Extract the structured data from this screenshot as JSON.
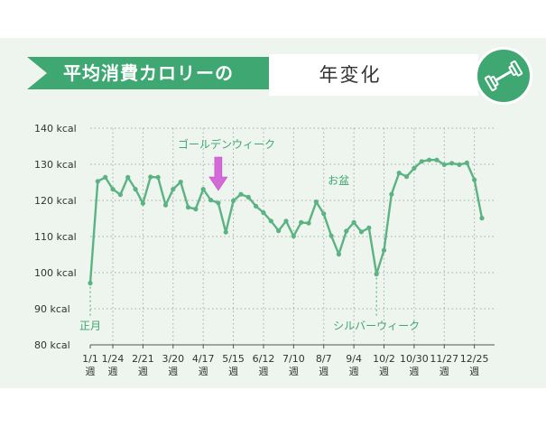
{
  "header": {
    "banner_text": "平均消費カロリーの",
    "title_text": "年変化",
    "badge_icon": "dumbbell-icon"
  },
  "colors": {
    "accent": "#3fa872",
    "line": "#5bb383",
    "arrow": "#d36ad8",
    "background": "#eef4ee"
  },
  "chart_data": {
    "type": "line",
    "title": "平均消費カロリーの 年変化",
    "ylabel": "",
    "xlabel": "",
    "ylim": [
      80,
      140
    ],
    "y_ticks": [
      80,
      90,
      100,
      110,
      120,
      130,
      140
    ],
    "y_unit": "kcal",
    "grid": true,
    "x_ticks": [
      {
        "week": 1,
        "label": "1/1",
        "sub": "週"
      },
      {
        "week": 4,
        "label": "1/24",
        "sub": "週"
      },
      {
        "week": 8,
        "label": "2/21",
        "sub": "週"
      },
      {
        "week": 12,
        "label": "3/20",
        "sub": "週"
      },
      {
        "week": 16,
        "label": "4/17",
        "sub": "週"
      },
      {
        "week": 20,
        "label": "5/15",
        "sub": "週"
      },
      {
        "week": 24,
        "label": "6/12",
        "sub": "週"
      },
      {
        "week": 28,
        "label": "7/10",
        "sub": "週"
      },
      {
        "week": 32,
        "label": "8/7",
        "sub": "週"
      },
      {
        "week": 36,
        "label": "9/4",
        "sub": "週"
      },
      {
        "week": 40,
        "label": "10/2",
        "sub": "週"
      },
      {
        "week": 44,
        "label": "10/30",
        "sub": "週"
      },
      {
        "week": 48,
        "label": "11/27",
        "sub": "週"
      },
      {
        "week": 52,
        "label": "12/25",
        "sub": "週"
      }
    ],
    "series": [
      {
        "name": "",
        "values": [
          97.1,
          125.3,
          126.4,
          123.1,
          121.6,
          126.4,
          123.1,
          119.2,
          126.5,
          126.4,
          118.7,
          123.1,
          125.1,
          118.1,
          117.6,
          123.1,
          120.1,
          119.3,
          111.2,
          119.9,
          121.7,
          120.9,
          118.4,
          116.6,
          114.3,
          111.6,
          114.3,
          110.1,
          113.9,
          113.7,
          119.6,
          116.3,
          110.2,
          105.1,
          111.5,
          113.9,
          111.3,
          112.4,
          99.6,
          106.2,
          121.7,
          127.6,
          126.6,
          128.9,
          130.8,
          131.2,
          131.2,
          129.9,
          130.3,
          129.9,
          130.4,
          125.7,
          115.1
        ]
      }
    ],
    "annotations": [
      {
        "text": "ゴールデンウィーク",
        "week": 18
      },
      {
        "text": "お盆",
        "week": 33
      },
      {
        "text": "正月",
        "week": 1
      },
      {
        "text": "シルバーウィーク",
        "week": 39
      }
    ]
  }
}
